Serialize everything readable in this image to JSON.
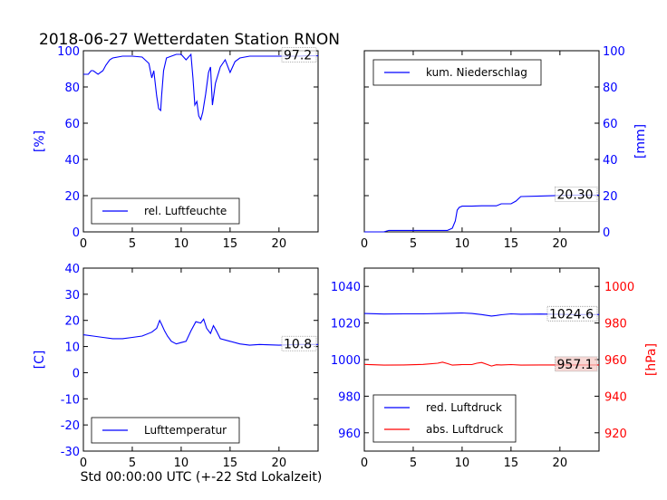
{
  "figure": {
    "title": "2018-06-27 Wetterdaten Station RNON",
    "xlabel": "Std 00:00:00 UTC (+-22 Std Lokalzeit)"
  },
  "colors": {
    "blue": "#0000ff",
    "red": "#ff0000",
    "highlight": "#f4c7c3"
  },
  "chart_data": [
    {
      "id": "humidity",
      "type": "line",
      "xlim": [
        0,
        24
      ],
      "ylim": [
        0,
        100
      ],
      "xticks": [
        0,
        5,
        10,
        15,
        20
      ],
      "yticks": [
        0,
        20,
        40,
        60,
        80,
        100
      ],
      "ylabel": "[%]",
      "ylabel_side": "left",
      "legend_position": "lower-center",
      "last_value_label": "97.2",
      "series": [
        {
          "name": "rel. Luftfeuchte",
          "color": "#0000ff",
          "x": [
            0,
            0.5,
            0.8,
            1,
            1.5,
            2,
            2.3,
            2.7,
            3,
            3.5,
            4,
            5,
            6,
            6.7,
            7,
            7.2,
            7.5,
            7.7,
            7.9,
            8,
            8.2,
            8.5,
            9,
            9.5,
            10,
            10.5,
            11,
            11.2,
            11.4,
            11.6,
            11.8,
            12,
            12.2,
            12.5,
            12.8,
            13,
            13.2,
            13.5,
            14,
            14.5,
            15,
            15.5,
            16,
            17,
            18,
            19,
            20,
            21,
            22,
            23,
            24
          ],
          "y": [
            87,
            87,
            89,
            89,
            87,
            89,
            92,
            95,
            96,
            96.5,
            97,
            97,
            96.5,
            93,
            85,
            89,
            75,
            68,
            67,
            75,
            89,
            96,
            97,
            98,
            98,
            95,
            98,
            85,
            70,
            72,
            64,
            62,
            66,
            76,
            88,
            91,
            70,
            82,
            91,
            95,
            88,
            94,
            96,
            97,
            97,
            97,
            97,
            97,
            97,
            97.2,
            97.2
          ]
        }
      ]
    },
    {
      "id": "precip",
      "type": "line",
      "xlim": [
        0,
        24
      ],
      "ylim": [
        0,
        100
      ],
      "xticks": [
        0,
        5,
        10,
        15,
        20
      ],
      "yticks": [
        0,
        20,
        40,
        60,
        80,
        100
      ],
      "ylabel": "[mm]",
      "ylabel_side": "right",
      "legend_position": "top-left",
      "last_value_label": "20.30",
      "series": [
        {
          "name": "kum. Niederschlag",
          "color": "#0000ff",
          "x": [
            0,
            2,
            2.5,
            8.5,
            9,
            9.3,
            9.5,
            9.7,
            10,
            11,
            12,
            13.5,
            14,
            15,
            15.5,
            16,
            18,
            20,
            22,
            24
          ],
          "y": [
            0,
            0,
            0.8,
            0.8,
            2,
            6,
            12,
            13.5,
            14.2,
            14.2,
            14.4,
            14.4,
            15.5,
            15.5,
            17,
            19.5,
            19.8,
            20.1,
            20.3,
            20.3
          ]
        }
      ]
    },
    {
      "id": "temperature",
      "type": "line",
      "xlim": [
        0,
        24
      ],
      "ylim": [
        -30,
        40
      ],
      "xticks": [
        0,
        5,
        10,
        15,
        20
      ],
      "yticks": [
        -30,
        -20,
        -10,
        0,
        10,
        20,
        30,
        40
      ],
      "ylabel": "[C]",
      "ylabel_side": "left",
      "legend_position": "lower-center",
      "last_value_label": "10.8",
      "series": [
        {
          "name": "Lufttemperatur",
          "color": "#0000ff",
          "x": [
            0,
            1,
            2,
            3,
            4,
            5,
            6,
            7,
            7.5,
            7.8,
            8,
            8.3,
            8.6,
            9,
            9.5,
            10,
            10.5,
            11,
            11.5,
            12,
            12.3,
            12.6,
            13,
            13.3,
            13.6,
            14,
            15,
            16,
            17,
            18,
            20,
            22,
            24
          ],
          "y": [
            14.5,
            14,
            13.5,
            13,
            13,
            13.5,
            14,
            15.5,
            17,
            20,
            18.5,
            16,
            14,
            12,
            11,
            11.5,
            12,
            16,
            19.5,
            19,
            20.5,
            17,
            15,
            18,
            16,
            13,
            12,
            11,
            10.5,
            10.8,
            10.5,
            10.8,
            10.8
          ]
        }
      ]
    },
    {
      "id": "pressure",
      "type": "line",
      "xlim": [
        0,
        24
      ],
      "ylim": [
        950,
        1050
      ],
      "y2lim": [
        910,
        1010
      ],
      "xticks": [
        0,
        5,
        10,
        15,
        20
      ],
      "yticks": [
        960,
        980,
        1000,
        1020,
        1040
      ],
      "y2ticks": [
        920,
        940,
        960,
        980,
        1000
      ],
      "ylabel": "",
      "y2label": "[hPa]",
      "legend_position": "lower-left",
      "last_value_labels": [
        "1024.6",
        "957.1"
      ],
      "series": [
        {
          "name": "red. Luftdruck",
          "color": "#0000ff",
          "axis": "left",
          "x": [
            0,
            2,
            4,
            6,
            8,
            10,
            11,
            12,
            13,
            13.5,
            14,
            15,
            16,
            18,
            20,
            22,
            24
          ],
          "y": [
            1025.2,
            1024.9,
            1025,
            1025,
            1025.2,
            1025.5,
            1025.2,
            1024.6,
            1023.8,
            1024.1,
            1024.5,
            1025,
            1024.8,
            1024.9,
            1024.7,
            1024.6,
            1024.6
          ]
        },
        {
          "name": "abs. Luftdruck",
          "color": "#ff0000",
          "axis": "right",
          "x": [
            0,
            2,
            4,
            6,
            7.5,
            8,
            8.5,
            9,
            10,
            11,
            11.5,
            12,
            12.5,
            13,
            13.5,
            14,
            15,
            16,
            18,
            20,
            22,
            24
          ],
          "y": [
            957.4,
            957,
            957.1,
            957.4,
            958,
            958.6,
            957.8,
            957,
            957.3,
            957.3,
            958,
            958.4,
            957.5,
            956.5,
            957.2,
            957.1,
            957.3,
            957,
            957.1,
            957.1,
            957.1,
            957.1
          ]
        }
      ]
    }
  ]
}
